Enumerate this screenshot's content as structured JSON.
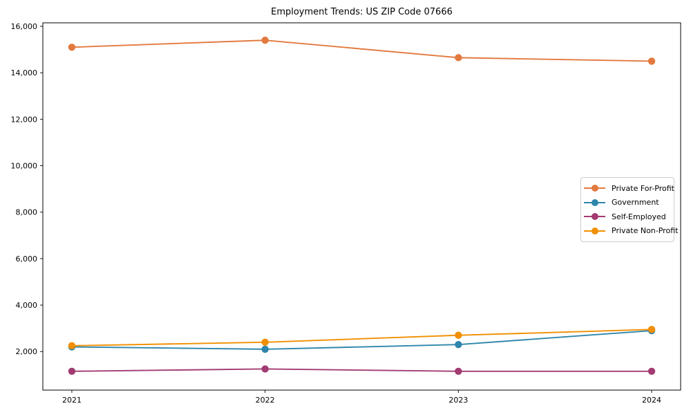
{
  "title": "Employment Trends: US ZIP Code 07666",
  "chart_data": {
    "type": "line",
    "title": "Employment Trends: US ZIP Code 07666",
    "xlabel": "",
    "ylabel": "",
    "categories": [
      "2021",
      "2022",
      "2023",
      "2024"
    ],
    "series": [
      {
        "name": "Private For-Profit",
        "color": "#E2793E",
        "values": [
          15100,
          15400,
          14650,
          14500
        ]
      },
      {
        "name": "Government",
        "color": "#2E86AB",
        "values": [
          2200,
          2100,
          2300,
          2900
        ]
      },
      {
        "name": "Self-Employed",
        "color": "#A23B72",
        "values": [
          1150,
          1250,
          1150,
          1150
        ]
      },
      {
        "name": "Private Non-Profit",
        "color": "#F18F01",
        "values": [
          2250,
          2400,
          2700,
          2950
        ]
      }
    ],
    "yticks": [
      2000,
      4000,
      6000,
      8000,
      10000,
      12000,
      14000,
      16000
    ],
    "ylim": [
      340,
      16150
    ],
    "xlim": [
      -0.15,
      3.15
    ],
    "grid": false,
    "legend_position": "center right",
    "marker": "circle"
  },
  "colors": {
    "background": "#ffffff",
    "axis": "#000000",
    "tick_label": "#000000",
    "legend_border": "#cccccc"
  }
}
